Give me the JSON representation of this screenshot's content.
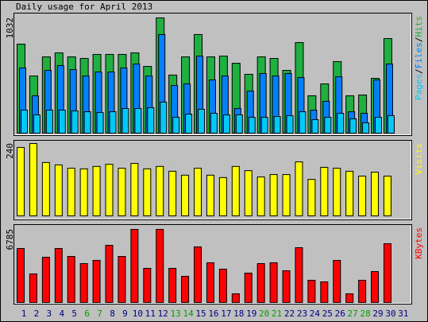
{
  "title": "Daily usage for April 2013",
  "chart_data": [
    {
      "type": "bar",
      "ylim": [
        0,
        1032
      ],
      "yticks": [
        1032
      ],
      "legend_separator": "/",
      "series": [
        {
          "name": "Pages",
          "color": "#00c8f8",
          "values": [
            206,
            164,
            206,
            206,
            199,
            192,
            185,
            192,
            221,
            221,
            228,
            278,
            142,
            171,
            214,
            178,
            164,
            164,
            142,
            142,
            149,
            157,
            192,
            121,
            142,
            178,
            128,
            93,
            142,
            157,
            null
          ]
        },
        {
          "name": "Files",
          "color": "#0080ff",
          "values": [
            584,
            335,
            562,
            605,
            569,
            512,
            548,
            548,
            584,
            619,
            512,
            883,
            427,
            441,
            690,
            477,
            512,
            221,
            377,
            534,
            512,
            534,
            498,
            206,
            285,
            505,
            192,
            178,
            477,
            619,
            null
          ]
        },
        {
          "name": "Hits",
          "color": "#20b040",
          "values": [
            797,
            512,
            683,
            719,
            683,
            669,
            705,
            705,
            705,
            719,
            598,
            1032,
            520,
            683,
            883,
            683,
            690,
            626,
            527,
            683,
            669,
            562,
            811,
            335,
            441,
            641,
            335,
            342,
            491,
            847,
            null
          ]
        }
      ]
    },
    {
      "type": "bar",
      "ylim": [
        0,
        240
      ],
      "yticks": [
        240
      ],
      "series": [
        {
          "name": "Visits",
          "color": "#ffff00",
          "values": [
            227,
            240,
            177,
            169,
            158,
            156,
            164,
            171,
            158,
            174,
            156,
            164,
            148,
            135,
            158,
            135,
            127,
            164,
            150,
            129,
            137,
            137,
            179,
            121,
            161,
            158,
            148,
            132,
            145,
            132,
            null
          ]
        }
      ]
    },
    {
      "type": "bar",
      "ylim": [
        0,
        6785
      ],
      "yticks": [
        6785
      ],
      "categories": [
        "1",
        "2",
        "3",
        "4",
        "5",
        "6",
        "7",
        "8",
        "9",
        "10",
        "11",
        "12",
        "13",
        "14",
        "15",
        "16",
        "17",
        "18",
        "19",
        "20",
        "21",
        "22",
        "23",
        "24",
        "25",
        "26",
        "27",
        "28",
        "29",
        "30",
        "31"
      ],
      "category_colors": [
        "#000080",
        "#000080",
        "#000080",
        "#000080",
        "#000080",
        "#00a000",
        "#00a000",
        "#000080",
        "#000080",
        "#000080",
        "#000080",
        "#000080",
        "#00a000",
        "#00a000",
        "#000080",
        "#000080",
        "#000080",
        "#000080",
        "#000080",
        "#00a000",
        "#00a000",
        "#000080",
        "#000080",
        "#000080",
        "#000080",
        "#000080",
        "#00a000",
        "#00a000",
        "#000080",
        "#000080",
        "#000080"
      ],
      "series": [
        {
          "name": "KBytes",
          "color": "#ff0000",
          "values": [
            5015,
            2655,
            4204,
            5015,
            4277,
            3614,
            3909,
            5310,
            4277,
            6785,
            3171,
            6785,
            3171,
            2434,
            5162,
            3688,
            3097,
            811,
            2729,
            3614,
            3688,
            2950,
            5089,
            2065,
            1918,
            3909,
            811,
            2065,
            2876,
            5458,
            null
          ]
        }
      ]
    }
  ]
}
